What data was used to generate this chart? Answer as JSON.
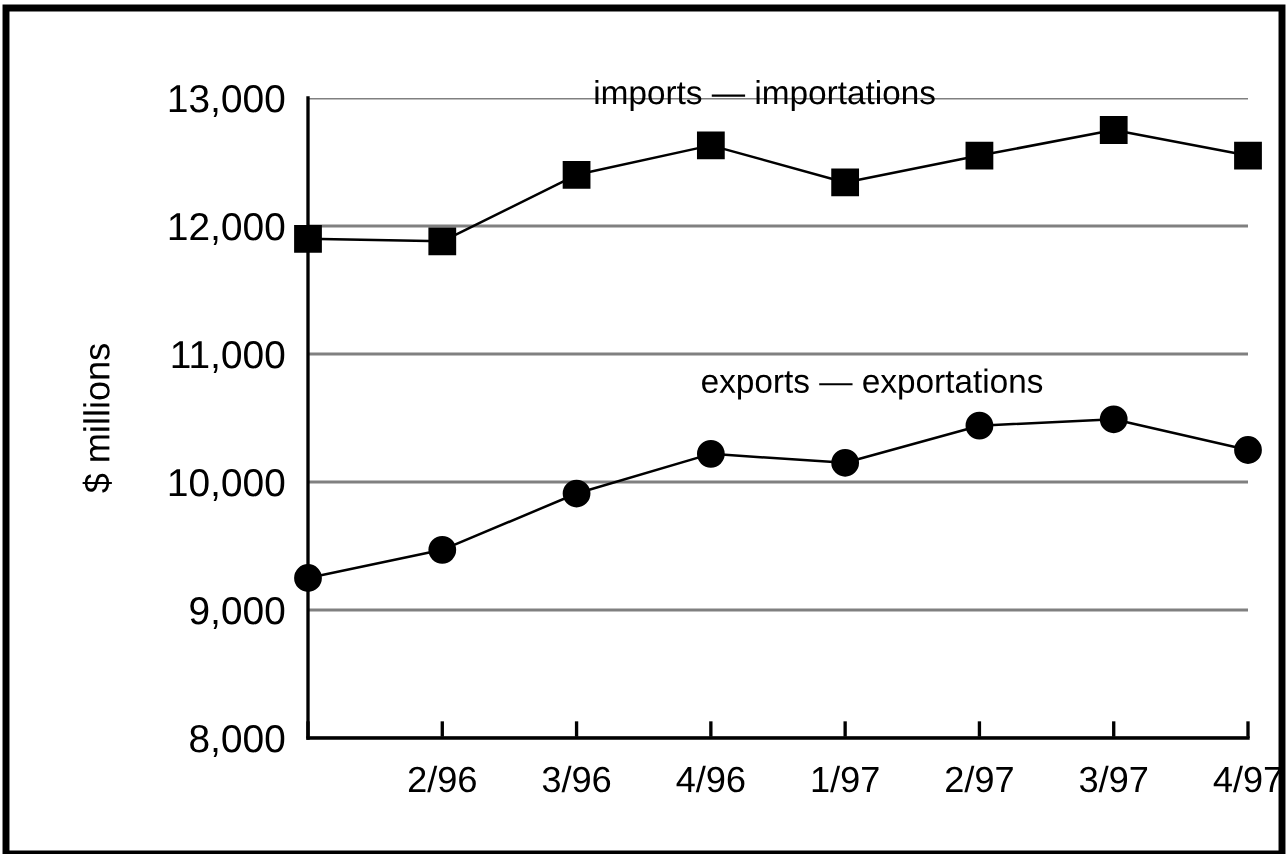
{
  "chart_data": {
    "type": "line",
    "ylabel": "$ millions",
    "categories": [
      null,
      "2/96",
      "3/96",
      "4/96",
      "1/97",
      "2/97",
      "3/97",
      "4/97"
    ],
    "series": [
      {
        "name": "imports — importations",
        "color": "#000000",
        "marker": "square",
        "values": [
          11900,
          11880,
          12400,
          12630,
          12340,
          12550,
          12750,
          12550
        ]
      },
      {
        "name": "exports — exportations",
        "color": "#000000",
        "marker": "circle",
        "values": [
          9250,
          9470,
          9910,
          10220,
          10150,
          10440,
          10490,
          10250
        ]
      }
    ],
    "ylim": [
      8000,
      13000
    ],
    "yticks": [
      {
        "value": 8000,
        "label": "8,000"
      },
      {
        "value": 9000,
        "label": "9,000"
      },
      {
        "value": 10000,
        "label": "10,000"
      },
      {
        "value": 11000,
        "label": "11,000"
      },
      {
        "value": 12000,
        "label": "12,000"
      },
      {
        "value": 13000,
        "label": "13,000"
      }
    ],
    "grid": "y",
    "line_style": "solid",
    "legend": false
  }
}
